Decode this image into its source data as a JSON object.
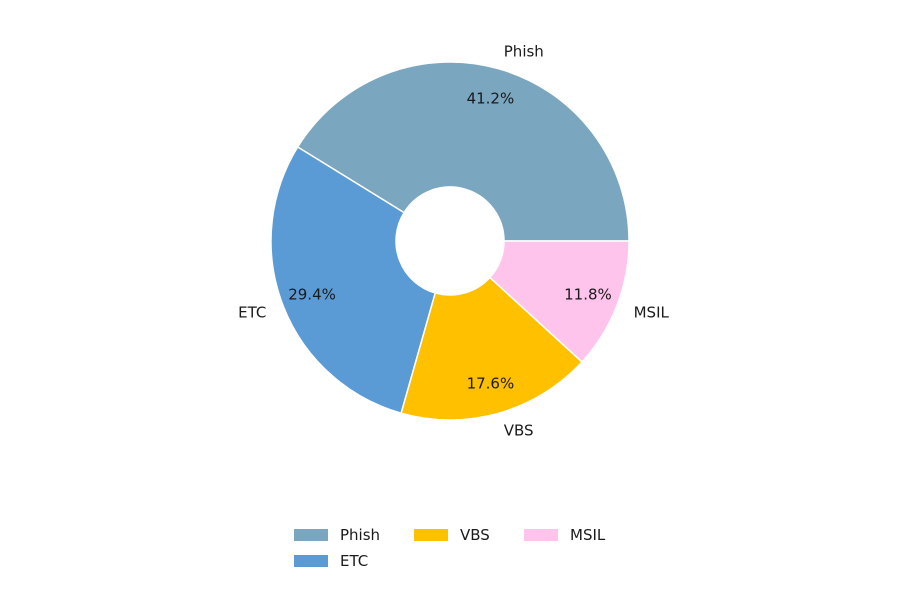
{
  "chart_data": {
    "type": "pie",
    "donut": true,
    "categories": [
      "Phish",
      "ETC",
      "VBS",
      "MSIL"
    ],
    "values": [
      41.2,
      29.4,
      17.6,
      11.8
    ],
    "percent_labels": [
      "41.2%",
      "29.4%",
      "17.6%",
      "11.8%"
    ],
    "colors": [
      "#7aa6bf",
      "#5b9bd5",
      "#ffc000",
      "#ffc4ec"
    ],
    "legend": {
      "placement": "bottom-center",
      "items": [
        "Phish",
        "ETC",
        "VBS",
        "MSIL"
      ]
    }
  }
}
